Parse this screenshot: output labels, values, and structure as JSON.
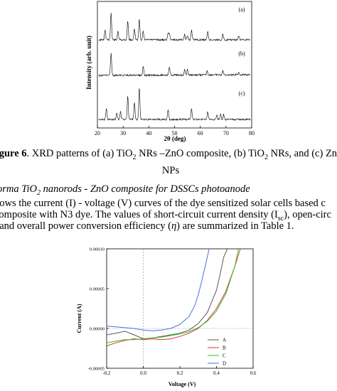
{
  "figure6": {
    "chart_data": {
      "type": "line",
      "xlabel": "2θ (deg)",
      "ylabel": "Intensity (arb. unit)",
      "xlim": [
        20,
        80
      ],
      "x_ticks": [
        "20",
        "30",
        "40",
        "50",
        "60",
        "70",
        "80"
      ],
      "series_labels": [
        "(a)",
        "(b)",
        "(c)"
      ],
      "peaks": [
        {
          "label": "(a)",
          "positions_deg": [
            23,
            25.3,
            28,
            31.8,
            34.4,
            36.3,
            37.8,
            47.5,
            48,
            53.9,
            55,
            56.6,
            62.9,
            68.8,
            75
          ]
        },
        {
          "label": "(b)",
          "positions_deg": [
            25.3,
            37.8,
            48,
            53.9,
            55,
            62.7,
            68.8,
            75
          ]
        },
        {
          "label": "(c)",
          "positions_deg": [
            23.5,
            27.5,
            29,
            31.8,
            34.4,
            36.3,
            47.5,
            56.6,
            62.9,
            66.4,
            67.9,
            69.1
          ]
        }
      ],
      "grid": false
    },
    "caption_prefix": "igure 6",
    "caption_text": ". XRD patterns of (a) TiO",
    "caption_sub1": "2",
    "caption_mid1": " NRs –ZnO composite, (b) TiO",
    "caption_sub2": "2",
    "caption_mid2": " NRs, and (c) Zn",
    "caption_cut": "O",
    "caption_line2": "NPs"
  },
  "section": {
    "heading_a": "forma TiO",
    "heading_sub": "2",
    "heading_b": " nanorods - ZnO composite for DSSCs photoanode",
    "para_line1": "hows the current (I) - voltage (V) curves of the dye sensitized solar cells based c",
    "para_line2_a": "composite with N3 dye. The values of short-circuit current density (I",
    "para_line2_sub": "sc",
    "para_line2_b": "), open-circ",
    "para_line3_a": ", and overall power conversion efficiency (",
    "para_line3_eta": "η",
    "para_line3_b": ") are summarized in Table 1."
  },
  "figure_iv": {
    "chart_data": {
      "type": "line",
      "xlabel": "Voltage (V)",
      "ylabel": "Current (A)",
      "xlim": [
        -0.2,
        0.6
      ],
      "ylim": [
        -5e-05,
        0.0001
      ],
      "x_ticks": [
        "-0.2",
        "0.0",
        "0.2",
        "0.4",
        "0.6"
      ],
      "y_ticks": [
        "-0.00005",
        "0.00000",
        "0.00005",
        "0.00010"
      ],
      "series": [
        {
          "name": "A",
          "color": "#5a5a5a",
          "x": [
            -0.2,
            -0.15,
            -0.1,
            -0.05,
            0.0,
            0.05,
            0.1,
            0.15,
            0.2,
            0.25,
            0.3,
            0.35,
            0.4,
            0.42,
            0.44,
            0.46
          ],
          "y": [
            -8e-06,
            -6e-06,
            -3.5e-06,
            -8e-06,
            -1.3e-05,
            -1.2e-05,
            -1e-05,
            -8e-06,
            -6e-06,
            -2e-06,
            6e-06,
            2e-05,
            4.8e-05,
            6.8e-05,
            9e-05,
            0.0001
          ]
        },
        {
          "name": "B",
          "color": "#e03030",
          "x": [
            -0.2,
            -0.15,
            -0.1,
            -0.05,
            0.0,
            0.05,
            0.1,
            0.15,
            0.2,
            0.25,
            0.3,
            0.35,
            0.4,
            0.45,
            0.5,
            0.53
          ],
          "y": [
            -2.2e-05,
            -1.8e-05,
            -1.5e-05,
            -1.3e-05,
            -1.4e-05,
            -1.3e-05,
            -1.4e-05,
            -1.3e-05,
            -1e-05,
            -6e-06,
            0.0,
            1e-05,
            2.5e-05,
            4.6e-05,
            7.8e-05,
            0.0001
          ]
        },
        {
          "name": "C",
          "color": "#30c030",
          "x": [
            -0.2,
            -0.15,
            -0.1,
            -0.05,
            0.0,
            0.05,
            0.1,
            0.15,
            0.2,
            0.25,
            0.3,
            0.35,
            0.4,
            0.45,
            0.5,
            0.52
          ],
          "y": [
            -1.8e-05,
            -1.6e-05,
            -1.4e-05,
            -1.4e-05,
            -1.3e-05,
            -1.2e-05,
            -1.1e-05,
            -9e-06,
            -7e-06,
            -4e-06,
            1e-06,
            9e-06,
            2.2e-05,
            4.3e-05,
            7.8e-05,
            0.0001
          ]
        },
        {
          "name": "D",
          "color": "#4a6fe0",
          "x": [
            -0.2,
            -0.15,
            -0.1,
            -0.05,
            0.0,
            0.05,
            0.1,
            0.15,
            0.2,
            0.25,
            0.28,
            0.3,
            0.32,
            0.34,
            0.36
          ],
          "y": [
            3e-06,
            2e-06,
            1e-06,
            0.0,
            -2e-06,
            -3e-06,
            -2e-06,
            0.0,
            5e-06,
            1.5e-05,
            2.8e-05,
            4.2e-05,
            6e-05,
            8e-05,
            0.0001
          ]
        }
      ],
      "legend_position": "bottom-right",
      "zero_lines": true
    }
  }
}
